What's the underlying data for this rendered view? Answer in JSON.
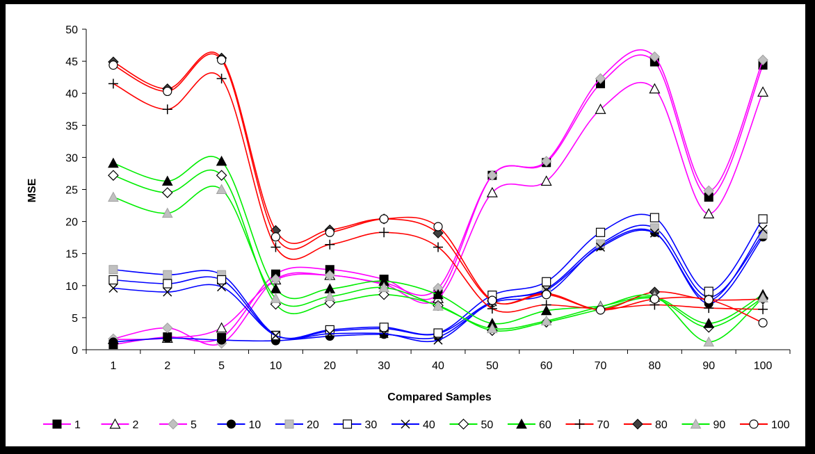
{
  "chart_data": {
    "type": "line",
    "xlabel": "Compared Samples",
    "ylabel": "MSE",
    "categories": [
      "1",
      "2",
      "5",
      "10",
      "20",
      "30",
      "40",
      "50",
      "60",
      "70",
      "80",
      "90",
      "100"
    ],
    "ylim": [
      0,
      50
    ],
    "yticks": [
      0,
      5,
      10,
      15,
      20,
      25,
      30,
      35,
      40,
      45,
      50
    ],
    "grid": false,
    "smooth": true,
    "legend_position": "bottom",
    "series": [
      {
        "name": "1",
        "color": "#ff00ff",
        "marker": "square-filled",
        "marker_color": "#000000",
        "values": [
          0.8,
          2.0,
          1.9,
          11.8,
          12.5,
          11.0,
          8.7,
          27.2,
          29.2,
          41.5,
          44.9,
          23.8,
          44.4
        ]
      },
      {
        "name": "2",
        "color": "#ff00ff",
        "marker": "triangle-open",
        "marker_color": "#000000",
        "values": [
          1.6,
          1.8,
          3.4,
          10.9,
          11.6,
          10.2,
          8.0,
          24.5,
          26.3,
          37.5,
          40.7,
          21.2,
          40.2
        ]
      },
      {
        "name": "5",
        "color": "#ff00ff",
        "marker": "diamond-filled",
        "marker_color": "#c0c0c0",
        "values": [
          1.7,
          3.4,
          1.0,
          11.0,
          11.6,
          10.4,
          9.6,
          27.2,
          29.4,
          42.3,
          45.7,
          24.8,
          45.2
        ]
      },
      {
        "name": "10",
        "color": "#0000ff",
        "marker": "circle-filled",
        "marker_color": "#000000",
        "values": [
          1.2,
          1.8,
          1.5,
          1.4,
          2.1,
          2.4,
          2.0,
          7.3,
          8.7,
          16.2,
          18.3,
          7.2,
          17.6
        ]
      },
      {
        "name": "20",
        "color": "#0000ff",
        "marker": "square-filled",
        "marker_color": "#c0c0c0",
        "values": [
          12.5,
          11.7,
          11.7,
          2.3,
          2.9,
          3.3,
          2.5,
          7.5,
          9.5,
          16.5,
          19.0,
          8.2,
          18.0
        ]
      },
      {
        "name": "30",
        "color": "#0000ff",
        "marker": "square-open",
        "marker_color": "#000000",
        "values": [
          10.9,
          10.3,
          10.9,
          2.2,
          3.1,
          3.5,
          2.6,
          8.5,
          10.6,
          18.3,
          20.6,
          9.1,
          20.4
        ]
      },
      {
        "name": "40",
        "color": "#0000ff",
        "marker": "x",
        "marker_color": "#000000",
        "values": [
          9.6,
          9.0,
          9.8,
          2.2,
          2.5,
          2.5,
          1.5,
          7.5,
          9.3,
          16.0,
          18.2,
          7.7,
          18.8
        ]
      },
      {
        "name": "50",
        "color": "#00ee00",
        "marker": "diamond-open",
        "marker_color": "#000000",
        "values": [
          27.2,
          24.5,
          27.2,
          7.1,
          7.3,
          8.6,
          6.9,
          3.0,
          4.3,
          6.3,
          8.0,
          3.5,
          8.1
        ]
      },
      {
        "name": "60",
        "color": "#00ee00",
        "marker": "triangle-filled",
        "marker_color": "#000000",
        "values": [
          29.1,
          26.3,
          29.4,
          9.5,
          9.5,
          10.7,
          8.6,
          4.1,
          6.1,
          6.8,
          8.2,
          4.1,
          8.6
        ]
      },
      {
        "name": "70",
        "color": "#ff0000",
        "marker": "plus",
        "marker_color": "#000000",
        "values": [
          41.5,
          37.5,
          42.3,
          16.0,
          16.4,
          18.3,
          16.0,
          6.4,
          7.0,
          6.4,
          7.0,
          6.5,
          6.3
        ]
      },
      {
        "name": "80",
        "color": "#ff0000",
        "marker": "diamond-filled",
        "marker_color": "#404040",
        "values": [
          44.9,
          40.7,
          45.5,
          18.6,
          18.7,
          20.4,
          18.2,
          7.6,
          8.8,
          6.3,
          9.0,
          7.8,
          7.9
        ]
      },
      {
        "name": "90",
        "color": "#00ee00",
        "marker": "triangle-filled",
        "marker_color": "#c0c0c0",
        "values": [
          23.8,
          21.3,
          25.0,
          8.0,
          8.3,
          9.7,
          6.8,
          3.3,
          4.5,
          6.7,
          8.3,
          1.2,
          8.1
        ]
      },
      {
        "name": "100",
        "color": "#ff0000",
        "marker": "circle-open",
        "marker_color": "#000000",
        "values": [
          44.4,
          40.3,
          45.2,
          17.6,
          18.3,
          20.4,
          19.2,
          7.7,
          8.6,
          6.2,
          7.9,
          7.8,
          4.2
        ]
      }
    ]
  }
}
